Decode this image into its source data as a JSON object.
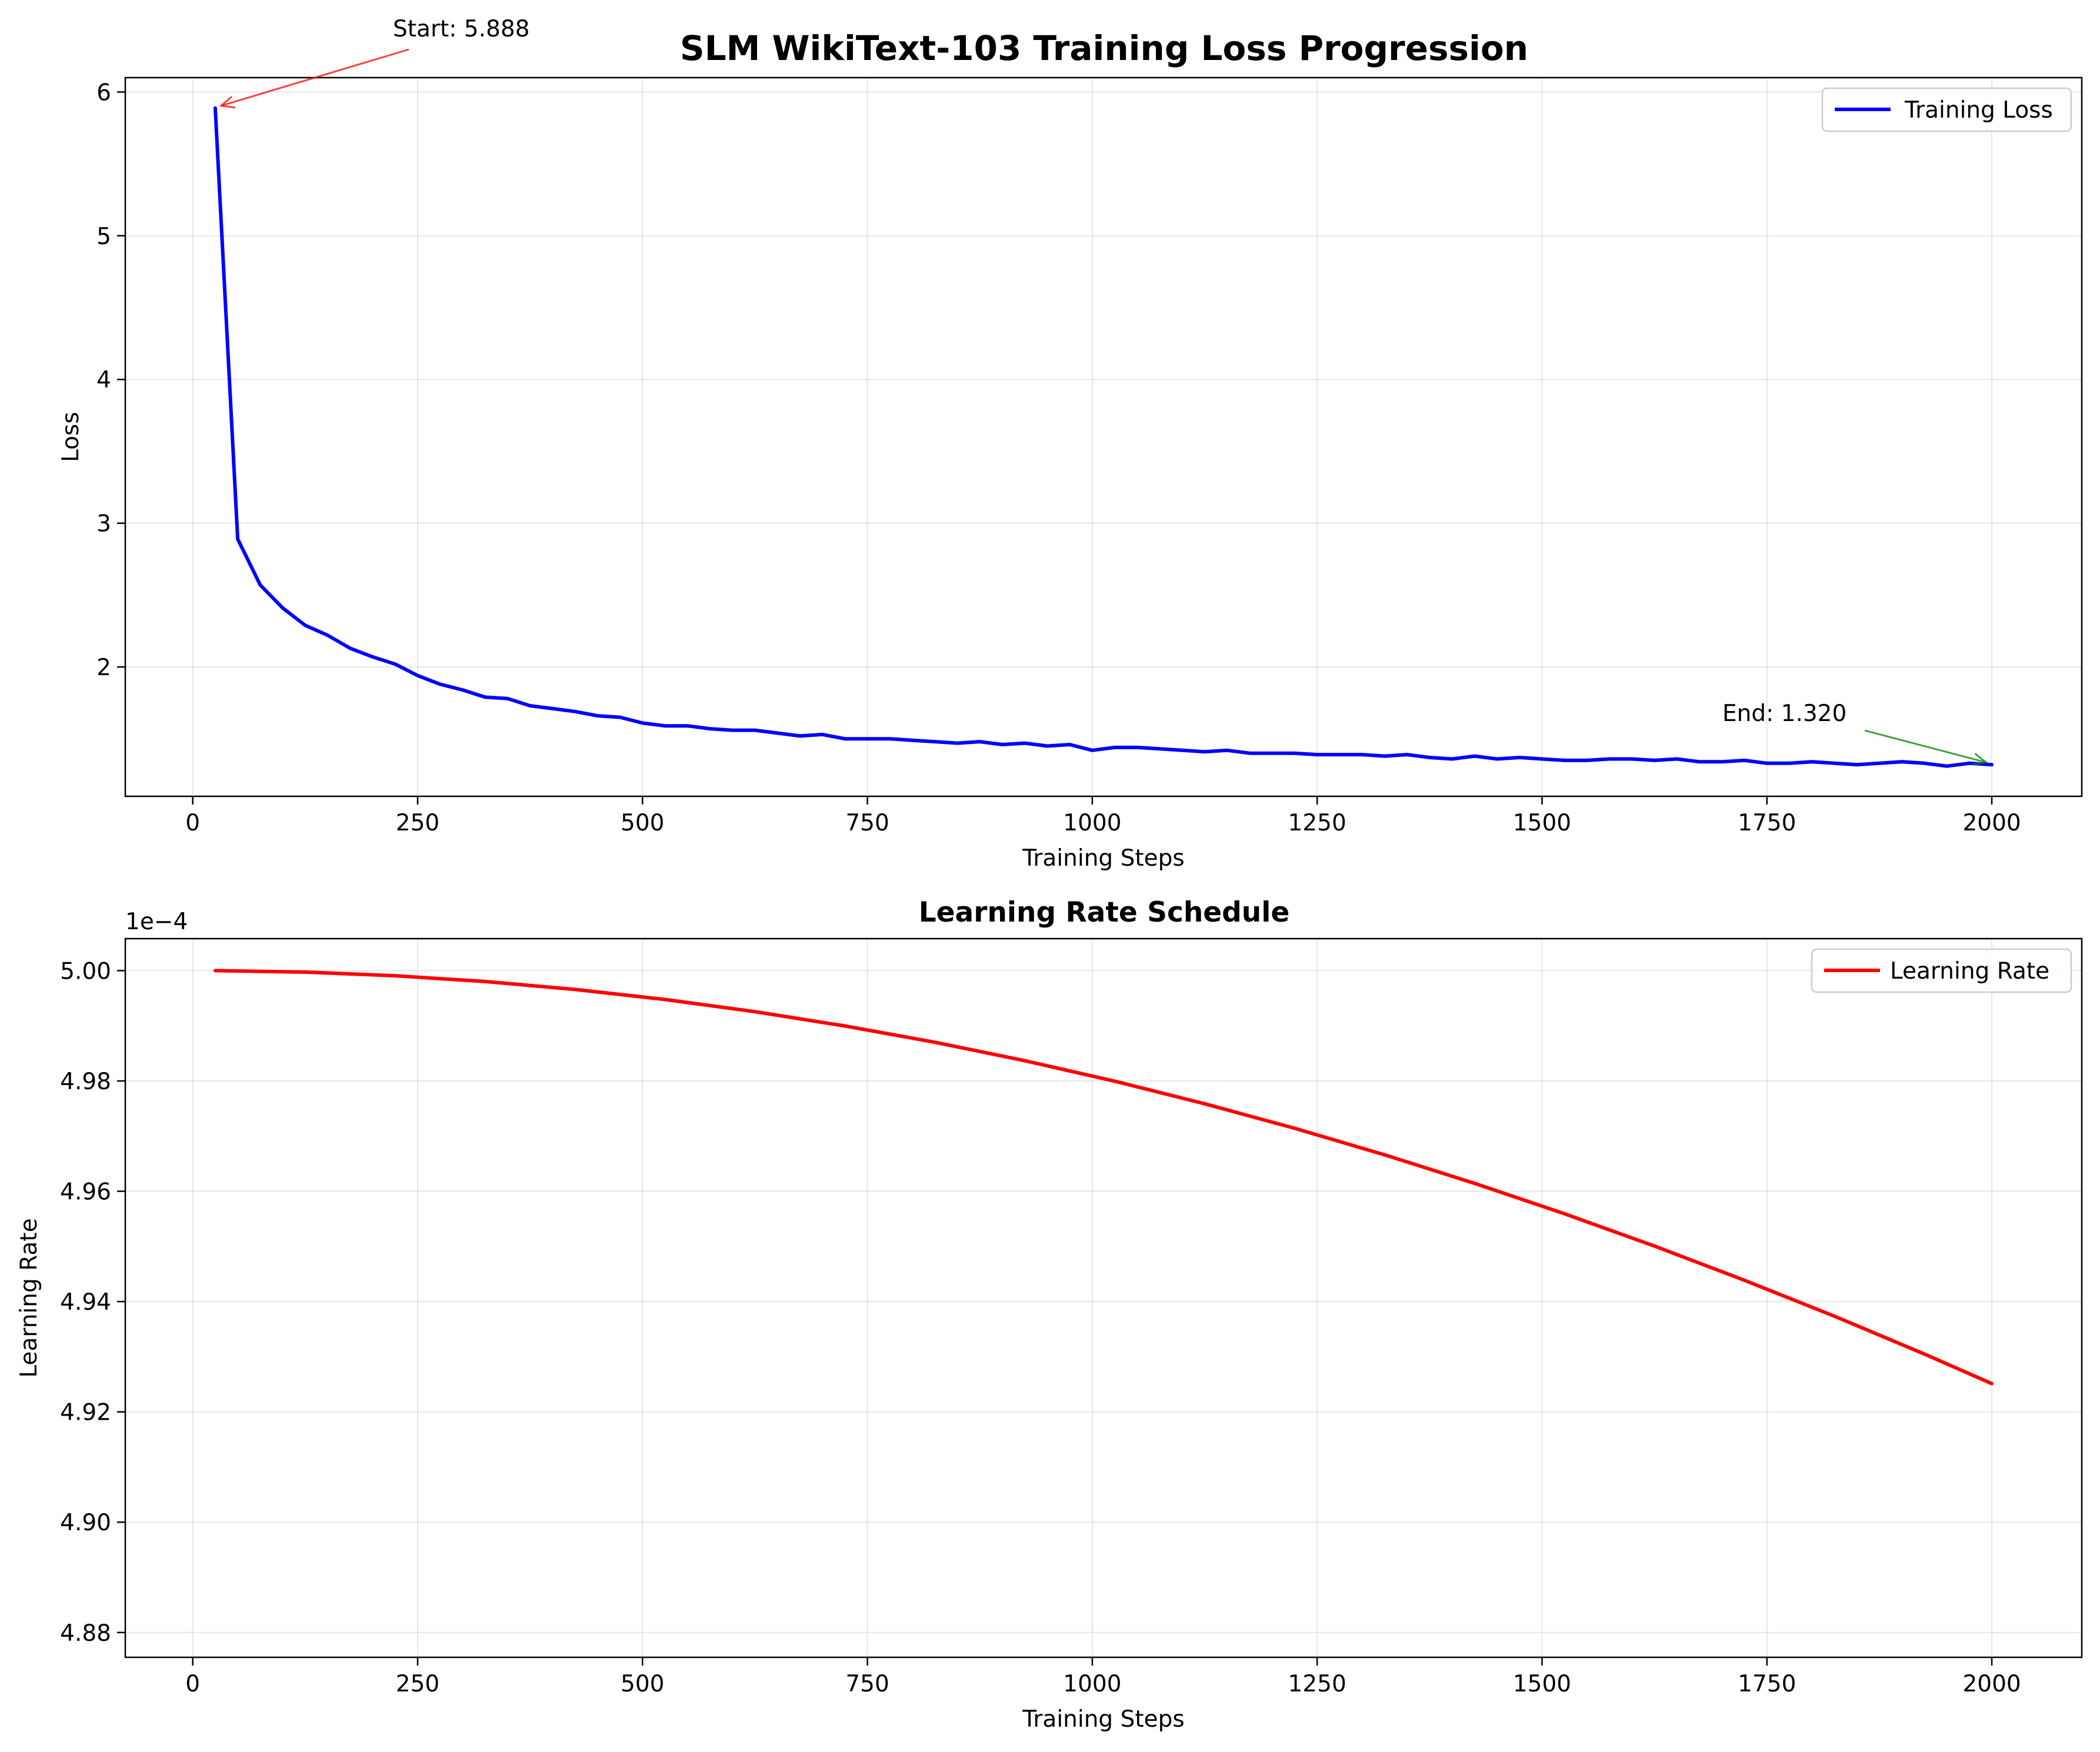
{
  "chart_data": [
    {
      "type": "line",
      "title": "SLM WikiText-103 Training Loss Progression",
      "xlabel": "Training Steps",
      "ylabel": "Loss",
      "xlim": [
        -75,
        2100
      ],
      "ylim": [
        1.1,
        6.1
      ],
      "xticks": [
        0,
        250,
        500,
        750,
        1000,
        1250,
        1500,
        1750,
        2000
      ],
      "xtick_labels": [
        "0",
        "250",
        "500",
        "750",
        "1000",
        "1250",
        "1500",
        "1750",
        "2000"
      ],
      "yticks": [
        2,
        3,
        4,
        5,
        6
      ],
      "ytick_labels": [
        "2",
        "3",
        "4",
        "5",
        "6"
      ],
      "grid": true,
      "legend": "upper-right",
      "series": [
        {
          "name": "Training Loss",
          "color": "#0000ff",
          "x": [
            25,
            50,
            75,
            100,
            125,
            150,
            175,
            200,
            225,
            250,
            275,
            300,
            325,
            350,
            375,
            400,
            425,
            450,
            475,
            500,
            525,
            550,
            575,
            600,
            625,
            650,
            675,
            700,
            725,
            750,
            775,
            800,
            825,
            850,
            875,
            900,
            925,
            950,
            975,
            1000,
            1025,
            1050,
            1075,
            1100,
            1125,
            1150,
            1175,
            1200,
            1225,
            1250,
            1275,
            1300,
            1325,
            1350,
            1375,
            1400,
            1425,
            1450,
            1475,
            1500,
            1525,
            1550,
            1575,
            1600,
            1625,
            1650,
            1675,
            1700,
            1725,
            1750,
            1775,
            1800,
            1825,
            1850,
            1875,
            1900,
            1925,
            1950,
            1975,
            2000
          ],
          "y": [
            5.888,
            2.89,
            2.57,
            2.41,
            2.29,
            2.22,
            2.13,
            2.07,
            2.02,
            1.94,
            1.88,
            1.84,
            1.79,
            1.78,
            1.73,
            1.71,
            1.69,
            1.66,
            1.65,
            1.61,
            1.59,
            1.59,
            1.57,
            1.56,
            1.56,
            1.54,
            1.52,
            1.53,
            1.5,
            1.5,
            1.5,
            1.49,
            1.48,
            1.47,
            1.48,
            1.46,
            1.47,
            1.45,
            1.46,
            1.42,
            1.44,
            1.44,
            1.43,
            1.42,
            1.41,
            1.42,
            1.4,
            1.4,
            1.4,
            1.39,
            1.39,
            1.39,
            1.38,
            1.39,
            1.37,
            1.36,
            1.38,
            1.36,
            1.37,
            1.36,
            1.35,
            1.35,
            1.36,
            1.36,
            1.35,
            1.36,
            1.34,
            1.34,
            1.35,
            1.33,
            1.33,
            1.34,
            1.33,
            1.32,
            1.33,
            1.34,
            1.33,
            1.31,
            1.33,
            1.32
          ]
        }
      ],
      "annotations": [
        {
          "text": "Start: 5.888",
          "arrow_to": [
            25,
            5.888
          ],
          "text_at": [
            225,
            6.4
          ],
          "color": "#ff0000"
        },
        {
          "text": "End: 1.320",
          "arrow_to": [
            2000,
            1.32
          ],
          "text_at": [
            1700,
            1.6
          ],
          "color": "#008000"
        }
      ]
    },
    {
      "type": "line",
      "title": "Learning Rate Schedule",
      "xlabel": "Training Steps",
      "ylabel": "Learning Rate",
      "offset_label": "1e−4",
      "xlim": [
        -75,
        2100
      ],
      "ylim": [
        4.8755,
        5.0058
      ],
      "xticks": [
        0,
        250,
        500,
        750,
        1000,
        1250,
        1500,
        1750,
        2000
      ],
      "xtick_labels": [
        "0",
        "250",
        "500",
        "750",
        "1000",
        "1250",
        "1500",
        "1750",
        "2000"
      ],
      "yticks": [
        4.88,
        4.9,
        4.92,
        4.94,
        4.96,
        4.98,
        5.0
      ],
      "ytick_labels": [
        "4.88",
        "4.90",
        "4.92",
        "4.94",
        "4.96",
        "4.98",
        "5.00"
      ],
      "grid": true,
      "legend": "upper-right",
      "series": [
        {
          "name": "Learning Rate",
          "color": "#ff0000",
          "x": [
            25,
            125,
            225,
            325,
            425,
            525,
            625,
            725,
            825,
            925,
            1025,
            1125,
            1225,
            1325,
            1425,
            1525,
            1625,
            1725,
            1825,
            1925,
            2000
          ],
          "y": [
            5.0,
            4.99973,
            4.99907,
            4.99803,
            4.99659,
            4.99476,
            4.99256,
            4.98997,
            4.98701,
            4.98366,
            4.97995,
            4.97586,
            4.97141,
            4.9666,
            4.96143,
            4.95592,
            4.95006,
            4.94386,
            4.93734,
            4.93049,
            4.92512
          ]
        }
      ]
    }
  ]
}
